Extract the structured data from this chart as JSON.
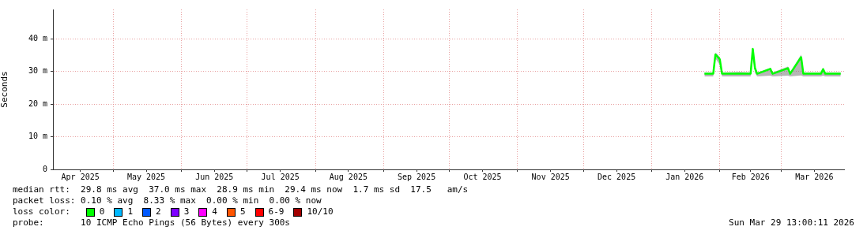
{
  "chart_data": {
    "type": "line",
    "ylabel": "Seconds",
    "legend_title": "loss color:",
    "legend": "bottom",
    "grid": true,
    "marker": "none",
    "line_style": "solid",
    "xlim": [
      "2025-04-03T13:00",
      "2026-03-29T13:00"
    ],
    "xticks": [
      {
        "value": "2025-04-16",
        "label": "Apr 2025"
      },
      {
        "value": "2025-05-01",
        "label": null
      },
      {
        "value": "2025-05-16",
        "label": "May 2025"
      },
      {
        "value": "2025-06-01",
        "label": null
      },
      {
        "value": "2025-06-16",
        "label": "Jun 2025"
      },
      {
        "value": "2025-07-01",
        "label": null
      },
      {
        "value": "2025-07-16",
        "label": "Jul 2025"
      },
      {
        "value": "2025-08-01",
        "label": null
      },
      {
        "value": "2025-08-16",
        "label": "Aug 2025"
      },
      {
        "value": "2025-09-01",
        "label": null
      },
      {
        "value": "2025-09-16",
        "label": "Sep 2025"
      },
      {
        "value": "2025-10-01",
        "label": null
      },
      {
        "value": "2025-10-16",
        "label": "Oct 2025"
      },
      {
        "value": "2025-11-01",
        "label": null
      },
      {
        "value": "2025-11-16",
        "label": "Nov 2025"
      },
      {
        "value": "2025-12-01",
        "label": null
      },
      {
        "value": "2025-12-16",
        "label": "Dec 2025"
      },
      {
        "value": "2026-01-01",
        "label": null
      },
      {
        "value": "2026-01-16",
        "label": "Jan 2026"
      },
      {
        "value": "2026-02-01",
        "label": null
      },
      {
        "value": "2026-02-15",
        "label": "Feb 2026"
      },
      {
        "value": "2026-03-01",
        "label": null
      },
      {
        "value": "2026-03-16",
        "label": "Mar 2026"
      }
    ],
    "ylim": [
      0,
      49
    ],
    "yticks": [
      0,
      {
        "value": 10,
        "label": "10 m"
      },
      {
        "value": 20,
        "label": "20 m"
      },
      {
        "value": 30,
        "label": "30 m"
      },
      {
        "value": 40,
        "label": "40 m"
      }
    ],
    "series": [
      {
        "name": "0",
        "color": "#00ff00",
        "x": [
          "2026-01-25",
          "2026-01-29",
          "2026-01-30",
          "2026-01-31",
          "2026-02-01",
          "2026-02-02",
          "2026-02-10",
          "2026-02-15",
          "2026-02-16",
          "2026-02-17",
          "2026-02-18",
          "2026-02-24",
          "2026-02-25",
          "2026-03-04",
          "2026-03-05",
          "2026-03-10",
          "2026-03-11",
          "2026-03-19",
          "2026-03-20",
          "2026-03-21",
          "2026-03-28"
        ],
        "values": [
          29.3,
          29.3,
          35.2,
          34.5,
          33.7,
          29.3,
          29.3,
          29.3,
          36.9,
          31.0,
          29.3,
          30.8,
          29.3,
          31.0,
          29.3,
          34.4,
          29.3,
          29.3,
          30.7,
          29.3,
          29.3
        ],
        "lower": [
          28.5,
          28.5,
          34.0,
          33.0,
          32.0,
          28.5,
          28.5,
          28.5,
          35.0,
          29.5,
          28.5,
          28.7,
          28.5,
          28.7,
          28.5,
          28.8,
          28.5,
          28.5,
          28.7,
          28.5,
          28.5
        ],
        "upper": [
          29.7,
          29.7,
          35.8,
          35.2,
          34.3,
          29.7,
          29.9,
          29.7,
          37.4,
          31.8,
          29.7,
          31.0,
          29.7,
          31.5,
          29.7,
          35.2,
          29.7,
          29.7,
          31.2,
          29.7,
          29.7
        ]
      },
      {
        "name": "1",
        "color": "#00b8ff"
      },
      {
        "name": "2",
        "color": "#0059ff"
      },
      {
        "name": "3",
        "color": "#7e00ff"
      },
      {
        "name": "4",
        "color": "#ff00ff"
      },
      {
        "name": "5",
        "color": "#ff5500"
      },
      {
        "name": "6-9",
        "color": "#ff0000"
      },
      {
        "name": "10/10",
        "color": "#a10000"
      }
    ],
    "annotations": [
      "median rtt:  29.8 ms avg  37.0 ms max  28.9 ms min  29.4 ms now  1.7 ms sd  17.5   am/s",
      "packet loss: 0.10 % avg  8.33 % max  0.00 % min  0.00 % now",
      "probe:       10 ICMP Echo Pings (56 Bytes) every 300s",
      "Sun Mar 29 13:00:11 2026"
    ]
  }
}
